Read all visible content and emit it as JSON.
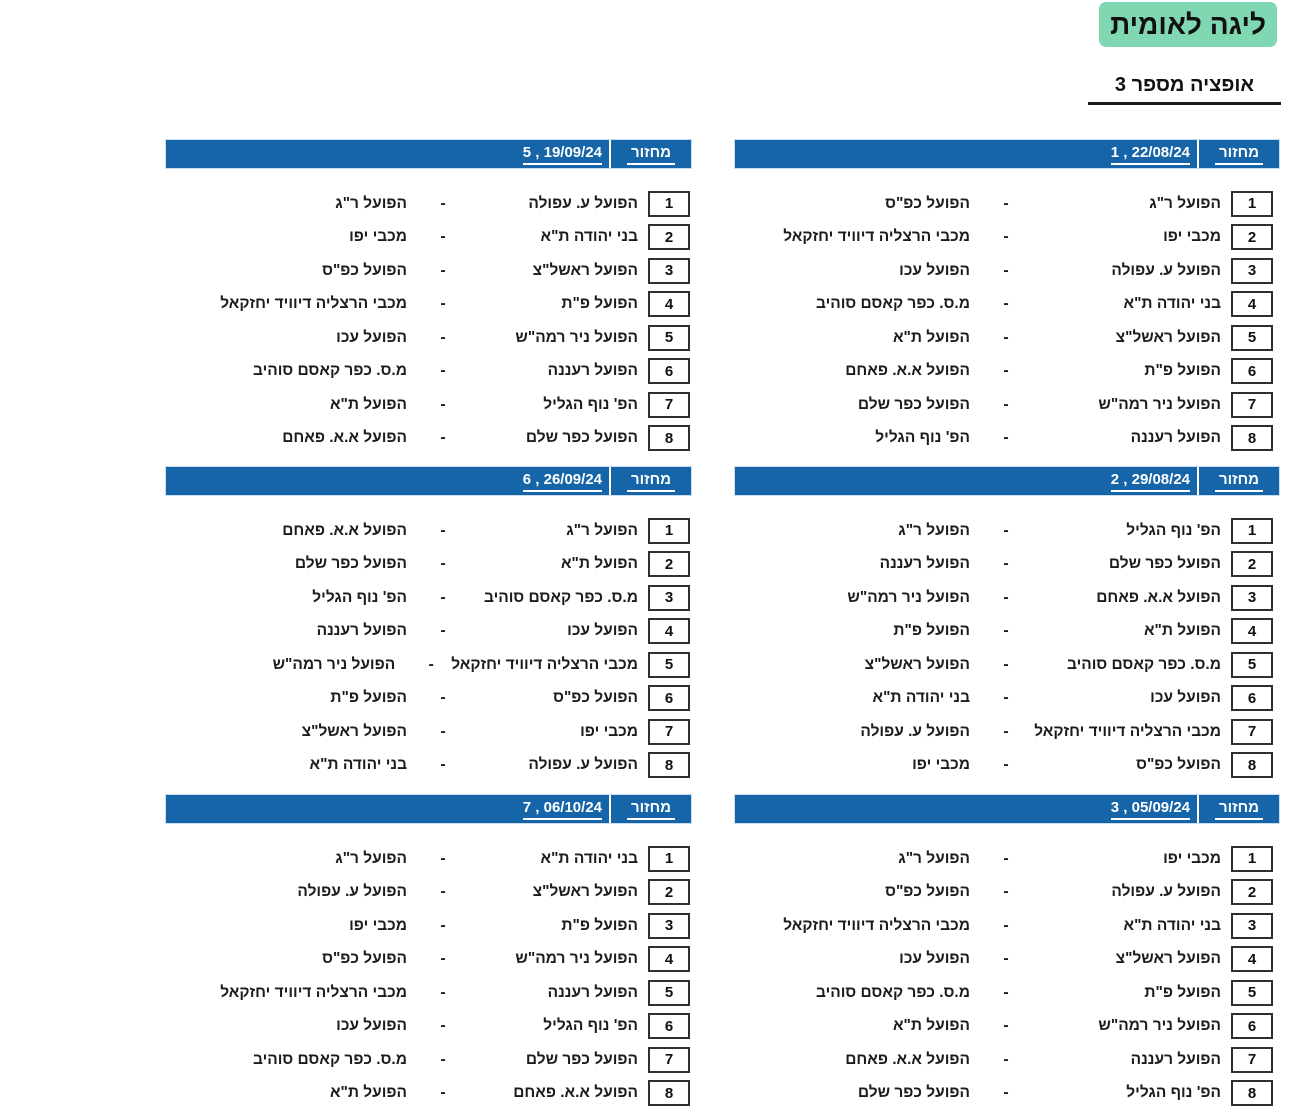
{
  "page": {
    "title": "ליגה לאומית",
    "subtitle": "אופציה מספר 3"
  },
  "labels": {
    "round_label": "מחזור",
    "separator": "-"
  },
  "colors": {
    "header_blue": "#1565a8",
    "title_green": "#7fd8b2"
  },
  "rounds": [
    {
      "round_no": "1",
      "date": "22/08/24",
      "matches": [
        {
          "num": "1",
          "home": "הפועל ר\"ג",
          "away": "הפועל כפ\"ס"
        },
        {
          "num": "2",
          "home": "מכבי יפו",
          "away": "מכבי הרצליה דיוויד יחזקאל"
        },
        {
          "num": "3",
          "home": "הפועל ע. עפולה",
          "away": "הפועל עכו"
        },
        {
          "num": "4",
          "home": "בני יהודה ת\"א",
          "away": "מ.ס. כפר קאסם סוהיב"
        },
        {
          "num": "5",
          "home": "הפועל ראשל\"צ",
          "away": "הפועל ת\"א"
        },
        {
          "num": "6",
          "home": "הפועל פ\"ת",
          "away": "הפועל א.א. פאחם"
        },
        {
          "num": "7",
          "home": "הפועל ניר רמה\"ש",
          "away": "הפועל כפר שלם"
        },
        {
          "num": "8",
          "home": "הפועל רעננה",
          "away": "הפ' נוף הגליל"
        }
      ]
    },
    {
      "round_no": "2",
      "date": "29/08/24",
      "matches": [
        {
          "num": "1",
          "home": "הפ' נוף הגליל",
          "away": "הפועל ר\"ג"
        },
        {
          "num": "2",
          "home": "הפועל כפר שלם",
          "away": "הפועל רעננה"
        },
        {
          "num": "3",
          "home": "הפועל א.א. פאחם",
          "away": "הפועל ניר רמה\"ש"
        },
        {
          "num": "4",
          "home": "הפועל ת\"א",
          "away": "הפועל פ\"ת"
        },
        {
          "num": "5",
          "home": "מ.ס. כפר קאסם סוהיב",
          "away": "הפועל ראשל\"צ"
        },
        {
          "num": "6",
          "home": "הפועל עכו",
          "away": "בני יהודה ת\"א"
        },
        {
          "num": "7",
          "home": "מכבי הרצליה דיוויד יחזקאל",
          "away": "הפועל ע. עפולה"
        },
        {
          "num": "8",
          "home": "הפועל כפ\"ס",
          "away": "מכבי יפו"
        }
      ]
    },
    {
      "round_no": "3",
      "date": "05/09/24",
      "matches": [
        {
          "num": "1",
          "home": "מכבי יפו",
          "away": "הפועל ר\"ג"
        },
        {
          "num": "2",
          "home": "הפועל ע. עפולה",
          "away": "הפועל כפ\"ס"
        },
        {
          "num": "3",
          "home": "בני יהודה ת\"א",
          "away": "מכבי הרצליה דיוויד יחזקאל"
        },
        {
          "num": "4",
          "home": "הפועל ראשל\"צ",
          "away": "הפועל עכו"
        },
        {
          "num": "5",
          "home": "הפועל פ\"ת",
          "away": "מ.ס. כפר קאסם סוהיב"
        },
        {
          "num": "6",
          "home": "הפועל ניר רמה\"ש",
          "away": "הפועל ת\"א"
        },
        {
          "num": "7",
          "home": "הפועל רעננה",
          "away": "הפועל א.א. פאחם"
        },
        {
          "num": "8",
          "home": "הפ' נוף הגליל",
          "away": "הפועל כפר שלם"
        }
      ]
    },
    {
      "round_no": "5",
      "date": "19/09/24",
      "matches": [
        {
          "num": "1",
          "home": "הפועל ע. עפולה",
          "away": "הפועל ר\"ג"
        },
        {
          "num": "2",
          "home": "בני יהודה ת\"א",
          "away": "מכבי יפו"
        },
        {
          "num": "3",
          "home": "הפועל ראשל\"צ",
          "away": "הפועל כפ\"ס"
        },
        {
          "num": "4",
          "home": "הפועל פ\"ת",
          "away": "מכבי הרצליה דיוויד יחזקאל"
        },
        {
          "num": "5",
          "home": "הפועל ניר רמה\"ש",
          "away": "הפועל עכו"
        },
        {
          "num": "6",
          "home": "הפועל רעננה",
          "away": "מ.ס. כפר קאסם סוהיב"
        },
        {
          "num": "7",
          "home": "הפ' נוף הגליל",
          "away": "הפועל ת\"א"
        },
        {
          "num": "8",
          "home": "הפועל כפר שלם",
          "away": "הפועל א.א. פאחם"
        }
      ]
    },
    {
      "round_no": "6",
      "date": "26/09/24",
      "matches": [
        {
          "num": "1",
          "home": "הפועל ר\"ג",
          "away": "הפועל א.א. פאחם"
        },
        {
          "num": "2",
          "home": "הפועל ת\"א",
          "away": "הפועל כפר שלם"
        },
        {
          "num": "3",
          "home": "מ.ס. כפר קאסם סוהיב",
          "away": "הפ' נוף הגליל"
        },
        {
          "num": "4",
          "home": "הפועל עכו",
          "away": "הפועל רעננה"
        },
        {
          "num": "5",
          "home": "מכבי הרצליה דיוויד יחזקאל",
          "away": "הפועל ניר רמה\"ש"
        },
        {
          "num": "6",
          "home": "הפועל כפ\"ס",
          "away": "הפועל פ\"ת"
        },
        {
          "num": "7",
          "home": "מכבי יפו",
          "away": "הפועל ראשל\"צ"
        },
        {
          "num": "8",
          "home": "הפועל ע. עפולה",
          "away": "בני יהודה ת\"א"
        }
      ]
    },
    {
      "round_no": "7",
      "date": "06/10/24",
      "matches": [
        {
          "num": "1",
          "home": "בני יהודה ת\"א",
          "away": "הפועל ר\"ג"
        },
        {
          "num": "2",
          "home": "הפועל ראשל\"צ",
          "away": "הפועל ע. עפולה"
        },
        {
          "num": "3",
          "home": "הפועל פ\"ת",
          "away": "מכבי יפו"
        },
        {
          "num": "4",
          "home": "הפועל ניר רמה\"ש",
          "away": "הפועל כפ\"ס"
        },
        {
          "num": "5",
          "home": "הפועל רעננה",
          "away": "מכבי הרצליה דיוויד יחזקאל"
        },
        {
          "num": "6",
          "home": "הפ' נוף הגליל",
          "away": "הפועל עכו"
        },
        {
          "num": "7",
          "home": "הפועל כפר שלם",
          "away": "מ.ס. כפר קאסם סוהיב"
        },
        {
          "num": "8",
          "home": "הפועל א.א. פאחם",
          "away": "הפועל ת\"א"
        }
      ]
    }
  ]
}
